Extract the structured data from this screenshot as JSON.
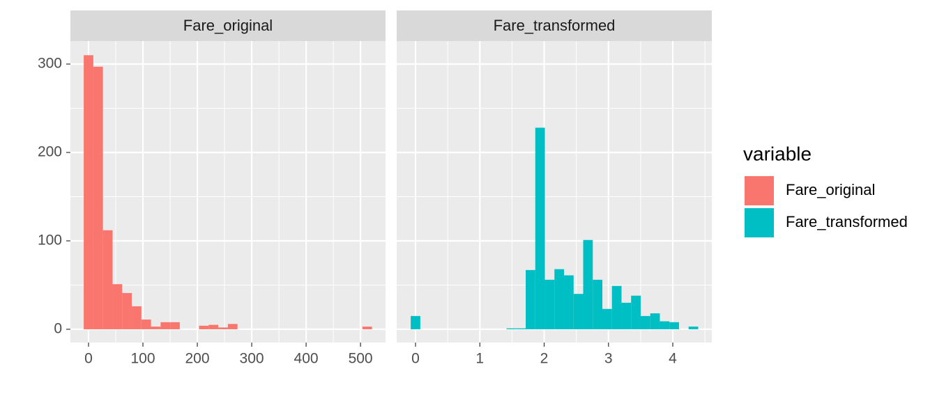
{
  "chart_data": [
    {
      "type": "histogram",
      "title": "Fare_original",
      "color": "#F8766D",
      "bins": [
        -8.83,
        8.83,
        26.5,
        44.17,
        61.83,
        79.5,
        97.17,
        114.83,
        132.5,
        150.17,
        167.83,
        185.5,
        203.17,
        220.83,
        238.5,
        256.17,
        273.83,
        291.5,
        309.17,
        326.83,
        344.5,
        362.17,
        379.83,
        397.5,
        415.17,
        432.83,
        450.5,
        468.17,
        485.83,
        503.5,
        521.17
      ],
      "values": [
        310,
        297,
        112,
        51,
        41,
        26,
        11,
        3,
        8,
        8,
        0,
        0,
        4,
        5,
        2,
        6,
        0,
        0,
        0,
        0,
        0,
        0,
        0,
        0,
        0,
        0,
        0,
        0,
        0,
        3
      ],
      "xlim": [
        -33.3,
        546
      ],
      "xticks": [
        0,
        100,
        200,
        300,
        400,
        500
      ],
      "ylim": [
        -15,
        326
      ],
      "yticks": [
        0,
        100,
        200,
        300
      ],
      "grid": true
    },
    {
      "type": "histogram",
      "title": "Fare_transformed",
      "color": "#00BFC4",
      "bins": [
        -0.075,
        0.074,
        0.223,
        0.372,
        0.521,
        0.67,
        0.819,
        0.968,
        1.117,
        1.266,
        1.415,
        1.564,
        1.713,
        1.862,
        2.011,
        2.16,
        2.309,
        2.458,
        2.607,
        2.756,
        2.905,
        3.054,
        3.203,
        3.352,
        3.501,
        3.65,
        3.799,
        3.948,
        4.097,
        4.246,
        4.395
      ],
      "values": [
        15,
        0,
        0,
        0,
        0,
        0,
        0,
        0,
        0,
        0,
        1,
        1,
        67,
        228,
        56,
        68,
        61,
        40,
        101,
        56,
        23,
        49,
        30,
        38,
        15,
        18,
        9,
        8,
        0,
        3
      ],
      "xlim": [
        -0.293,
        4.607
      ],
      "xticks": [
        0,
        1,
        2,
        3,
        4
      ],
      "ylim": [
        -15,
        326
      ],
      "yticks": [
        0,
        100,
        200,
        300
      ],
      "grid": true
    }
  ],
  "legend": {
    "title": "variable",
    "position": "right"
  }
}
